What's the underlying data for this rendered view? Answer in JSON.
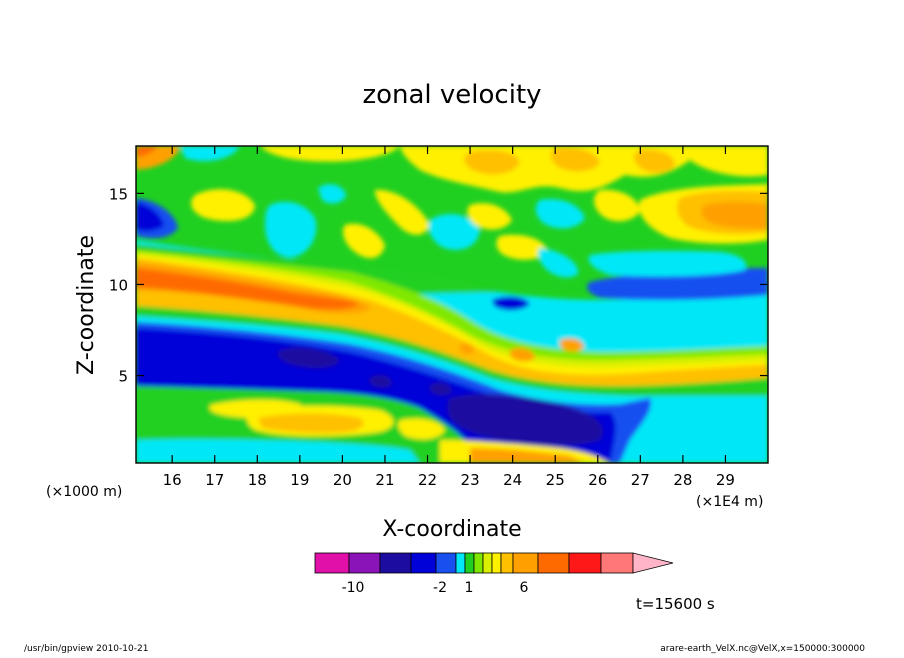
{
  "chart_data": {
    "type": "heatmap",
    "title": "zonal velocity",
    "xlabel": "X-coordinate",
    "ylabel": "Z-coordinate",
    "x_unit_left": "(×1000 m)",
    "x_unit_right": "(×1E4 m)",
    "xlim": [
      15.15,
      30.0
    ],
    "ylim": [
      0.2,
      17.6
    ],
    "x_ticks": [
      16,
      17,
      18,
      19,
      20,
      21,
      22,
      23,
      24,
      25,
      26,
      27,
      28,
      29
    ],
    "y_ticks": [
      5,
      10,
      15
    ],
    "time_label": "t=15600 s",
    "colorbar": {
      "colors": [
        "#e010a8",
        "#8a14b8",
        "#1c0ca0",
        "#0000d8",
        "#1850f0",
        "#00e8f8",
        "#20d020",
        "#80e800",
        "#d8f000",
        "#fff000",
        "#ffc000",
        "#ffa000",
        "#ff6a00",
        "#ff1818",
        "#ff7878",
        "#ffb4c8"
      ],
      "tick_labels": [
        "-10",
        "-2",
        "1",
        "6"
      ],
      "tick_after_index": [
        1,
        5,
        7,
        12
      ]
    }
  },
  "footer": {
    "left": "/usr/bin/gpview   2010-10-21",
    "right": "arare-earth_VelX.nc@VelX,x=150000:300000"
  }
}
